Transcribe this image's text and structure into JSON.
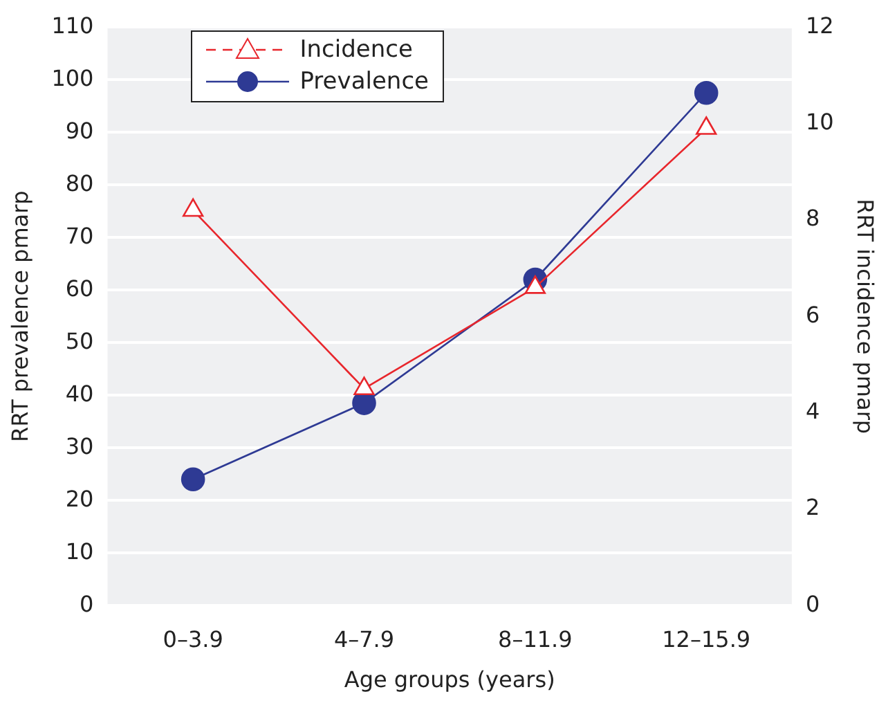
{
  "chart_data": {
    "type": "line",
    "xlabel": "Age groups (years)",
    "ylabel": "RRT prevalence pmarp",
    "y2label": "RRT incidence pmarp",
    "categories": [
      "0–3.9",
      "4–7.9",
      "8–11.9",
      "12–15.9"
    ],
    "series": [
      {
        "name": "Incidence",
        "color": "#e8262c",
        "values": [
          8.2,
          4.5,
          6.6,
          9.9
        ],
        "axis": "y2",
        "marker": "triangle"
      },
      {
        "name": "Prevalence",
        "color": "#2e3a94",
        "values": [
          24,
          38.5,
          62,
          97.5
        ],
        "marker": "circle"
      }
    ],
    "ylim": [
      0,
      110
    ],
    "yticks": [
      0,
      10,
      20,
      30,
      40,
      50,
      60,
      70,
      80,
      90,
      100,
      110
    ],
    "y2lim": [
      0,
      12
    ],
    "y2ticks": [
      0,
      2,
      4,
      6,
      8,
      10,
      12
    ],
    "grid": "y",
    "legend": "top left"
  }
}
